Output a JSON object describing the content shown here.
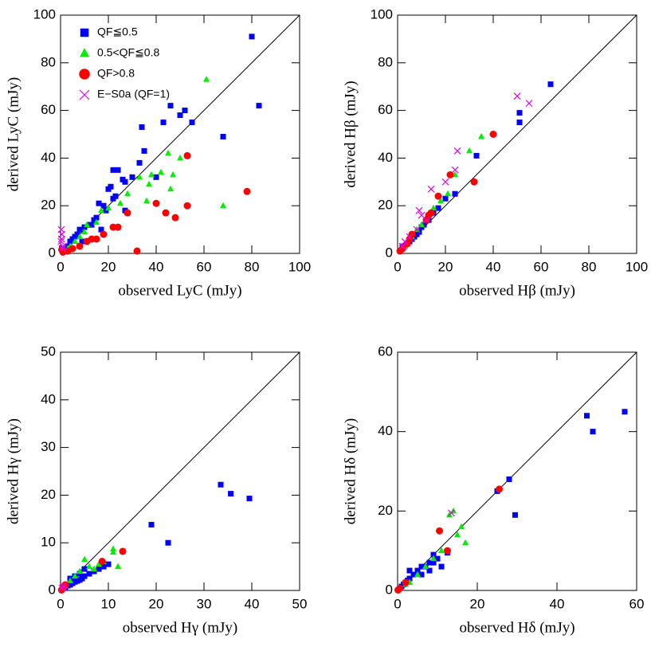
{
  "chart_data": [
    {
      "type": "scatter",
      "xlabel": "observed LyC  (mJy)",
      "ylabel": "derived LyC  (mJy)",
      "xlim": [
        0,
        100
      ],
      "ylim": [
        0,
        100
      ],
      "xticks": [
        0,
        20,
        40,
        60,
        80,
        100
      ],
      "yticks": [
        0,
        20,
        40,
        60,
        80,
        100
      ],
      "diagonal": true,
      "legend": "upper left",
      "series": [
        {
          "name": "QF≦0.5",
          "color": "#0000ff",
          "marker": "square",
          "x": [
            80,
            83,
            55,
            52,
            50,
            46,
            43,
            40,
            35,
            34,
            33,
            68,
            30,
            27,
            26,
            24,
            22,
            21,
            20,
            22,
            23,
            18,
            19,
            16,
            15,
            14,
            12,
            10,
            8,
            7,
            6,
            5,
            4,
            3,
            2,
            1,
            0.5,
            27,
            17,
            9,
            13
          ],
          "y": [
            91,
            62,
            55,
            60,
            58,
            62,
            55,
            32,
            43,
            53,
            38,
            49,
            32,
            30,
            31,
            35,
            35,
            28,
            27,
            23,
            24,
            20,
            18,
            21,
            15,
            14,
            12,
            11,
            10,
            8,
            7,
            6,
            5,
            3,
            2,
            1,
            2,
            18,
            10,
            5,
            12
          ]
        },
        {
          "name": "0.5<QF≦0.8",
          "color": "#00ee00",
          "marker": "triangle",
          "x": [
            61,
            45,
            50,
            38,
            33,
            42,
            46,
            47,
            36,
            37,
            68,
            28,
            25,
            20,
            17,
            15,
            11,
            8,
            6,
            4,
            3,
            10
          ],
          "y": [
            73,
            42,
            40,
            33,
            32,
            34,
            27,
            33,
            22,
            29,
            20,
            25,
            21,
            19,
            18,
            13,
            12,
            7,
            5,
            3,
            2,
            9
          ]
        },
        {
          "name": "QF>0.8",
          "color": "#ff0000",
          "marker": "circle",
          "x": [
            53,
            78,
            40,
            44,
            48,
            53,
            32,
            28,
            24,
            22,
            18,
            15,
            13,
            11,
            8,
            5,
            3,
            1,
            0.5
          ],
          "y": [
            41,
            26,
            21,
            17,
            15,
            20,
            1,
            17,
            11,
            11,
            8,
            6,
            6,
            5,
            3,
            2,
            1,
            0.5,
            1.5
          ]
        },
        {
          "name": "E−S0a (QF=1)",
          "color": "#ee00ee",
          "marker": "cross",
          "x": [
            0.3,
            0.5,
            0.2,
            1,
            0.8,
            0.4
          ],
          "y": [
            10,
            8,
            5,
            3,
            2,
            6
          ]
        }
      ]
    },
    {
      "type": "scatter",
      "xlabel": "observed Hβ (mJy)",
      "ylabel": "derived Hβ  (mJy)",
      "xlim": [
        0,
        100
      ],
      "ylim": [
        0,
        100
      ],
      "xticks": [
        0,
        20,
        40,
        60,
        80,
        100
      ],
      "yticks": [
        0,
        20,
        40,
        60,
        80,
        100
      ],
      "diagonal": true,
      "series": [
        {
          "color": "#0000ff",
          "marker": "square",
          "x": [
            64,
            51,
            51,
            33,
            24,
            20,
            17,
            15,
            13,
            11,
            10,
            9,
            8,
            7,
            6,
            5,
            4,
            3,
            2,
            1,
            2
          ],
          "y": [
            71,
            55,
            59,
            41,
            25,
            23,
            19,
            17,
            14,
            12,
            11,
            9,
            8,
            7,
            6,
            5,
            4,
            3,
            2,
            1,
            3
          ]
        },
        {
          "color": "#00ee00",
          "marker": "triangle",
          "x": [
            35,
            30,
            24,
            21,
            18,
            15,
            12,
            10,
            8,
            6,
            4,
            3
          ],
          "y": [
            49,
            43,
            33,
            25,
            22,
            19,
            15,
            12,
            10,
            7,
            5,
            3
          ]
        },
        {
          "color": "#ff0000",
          "marker": "circle",
          "x": [
            40,
            32,
            22,
            17,
            14,
            13,
            12,
            6,
            5,
            4,
            2,
            1
          ],
          "y": [
            50,
            30,
            33,
            24,
            17,
            16,
            14,
            8,
            6,
            4,
            2,
            1
          ]
        },
        {
          "color": "#ee00ee",
          "marker": "cross",
          "x": [
            50,
            55,
            25,
            24,
            20,
            14,
            9,
            10,
            12,
            8,
            5,
            3,
            2
          ],
          "y": [
            66,
            63,
            43,
            35,
            30,
            27,
            18,
            16,
            14,
            10,
            7,
            5,
            3
          ]
        }
      ]
    },
    {
      "type": "scatter",
      "xlabel": "observed Hγ (mJy)",
      "ylabel": "derived Hγ (mJy)",
      "xlim": [
        0,
        50
      ],
      "ylim": [
        0,
        50
      ],
      "xticks": [
        0,
        10,
        20,
        30,
        40,
        50
      ],
      "yticks": [
        0,
        10,
        20,
        30,
        40,
        50
      ],
      "diagonal": true,
      "series": [
        {
          "color": "#0000ff",
          "marker": "square",
          "x": [
            39.5,
            35.6,
            33.5,
            22.5,
            19,
            10,
            9,
            8,
            7,
            6,
            5,
            4.5,
            4,
            3.5,
            3,
            2.5,
            2,
            1.5,
            1,
            5,
            4,
            3,
            2
          ],
          "y": [
            19.3,
            20.3,
            22.2,
            10,
            13.8,
            5.5,
            5,
            4.5,
            4,
            3.5,
            3,
            2.5,
            2.2,
            2,
            1.8,
            1.5,
            1.2,
            1,
            0.6,
            4.5,
            3.5,
            3,
            2.5
          ]
        },
        {
          "color": "#00ee00",
          "marker": "triangle",
          "x": [
            11,
            11,
            12,
            5,
            6,
            7,
            8,
            4,
            3,
            2,
            1,
            9
          ],
          "y": [
            8.7,
            8,
            5,
            6.5,
            5,
            4.5,
            5.5,
            4,
            3,
            2,
            1,
            6
          ]
        },
        {
          "color": "#ff0000",
          "marker": "circle",
          "x": [
            13,
            8.7,
            1,
            0.5,
            0.2
          ],
          "y": [
            8.2,
            6.1,
            1.2,
            0.5,
            0.1
          ]
        },
        {
          "color": "#ee00ee",
          "marker": "cross",
          "x": [
            0.5,
            0.3
          ],
          "y": [
            1,
            0.5
          ]
        }
      ]
    },
    {
      "type": "scatter",
      "xlabel": "observed Hδ (mJy)",
      "ylabel": "derived Hδ (mJy)",
      "xlim": [
        0,
        60
      ],
      "ylim": [
        0,
        60
      ],
      "xticks": [
        0,
        20,
        40,
        60
      ],
      "yticks": [
        0,
        20,
        40,
        60
      ],
      "diagonal": true,
      "series": [
        {
          "color": "#0000ff",
          "marker": "square",
          "x": [
            57,
            47.5,
            49,
            29.5,
            28,
            25,
            12.5,
            10,
            9,
            8,
            7,
            6,
            5,
            4,
            3,
            2.5,
            2,
            1.5,
            1,
            3,
            6,
            8,
            11,
            9
          ],
          "y": [
            45,
            44,
            40,
            19,
            28,
            25,
            9.5,
            8,
            7,
            7,
            6,
            6,
            5,
            4,
            3,
            2.5,
            2,
            1.5,
            1,
            5,
            4,
            5,
            6,
            9
          ]
        },
        {
          "color": "#00ee00",
          "marker": "triangle",
          "x": [
            14,
            13,
            16,
            17,
            15,
            11,
            9,
            7,
            5,
            3,
            2
          ],
          "y": [
            20,
            19,
            16,
            12,
            14,
            10,
            8,
            6,
            4,
            2,
            1.5
          ]
        },
        {
          "color": "#ff0000",
          "marker": "circle",
          "x": [
            25.5,
            10.5,
            12.5,
            2,
            0.5,
            0.1
          ],
          "y": [
            25.5,
            15,
            10,
            2,
            0.5,
            0.1
          ]
        },
        {
          "color": "#ee00ee",
          "marker": "cross",
          "x": [
            13.5
          ],
          "y": [
            19.5
          ]
        }
      ]
    }
  ]
}
